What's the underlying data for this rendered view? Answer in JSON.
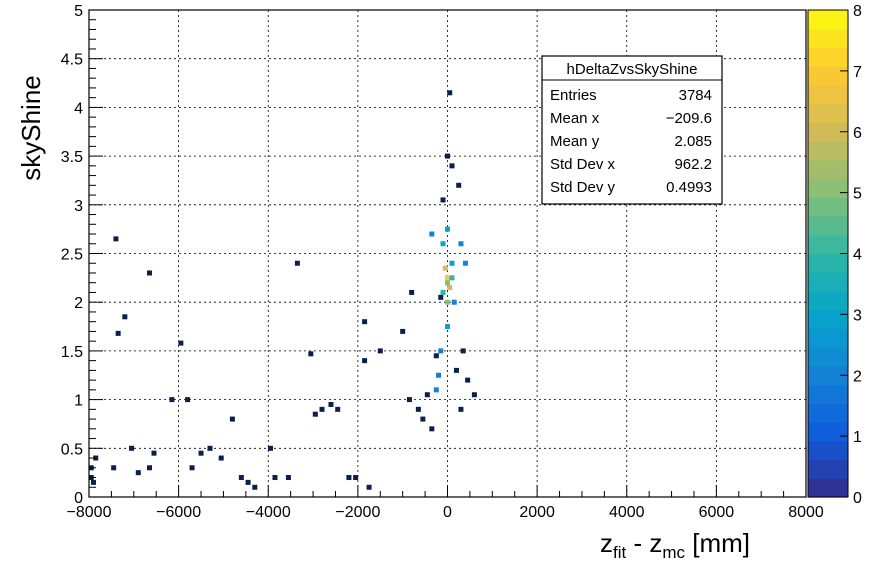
{
  "chart_data": {
    "type": "heatmap",
    "title": "",
    "xlabel": {
      "main": "z",
      "sub1": "fit",
      "mid": " - z",
      "sub2": "mc",
      "unit": " [mm]"
    },
    "ylabel": "skyShine",
    "xlim": [
      -8000,
      8000
    ],
    "ylim": [
      0,
      5
    ],
    "grid": true,
    "x_ticks": [
      "−8000",
      "−6000",
      "−4000",
      "−2000",
      "0",
      "2000",
      "4000",
      "6000",
      "8000"
    ],
    "y_ticks": [
      "0",
      "0.5",
      "1",
      "1.5",
      "2",
      "2.5",
      "3",
      "3.5",
      "4",
      "4.5",
      "5"
    ],
    "colorbar": {
      "min": 0,
      "max": 8,
      "ticks": [
        "0",
        "1",
        "2",
        "3",
        "4",
        "5",
        "6",
        "7",
        "8"
      ]
    },
    "stats_box": {
      "title": "hDeltaZvsSkyShine",
      "rows": [
        {
          "label": "Entries",
          "value": "3784"
        },
        {
          "label": "Mean x",
          "value": "−209.6"
        },
        {
          "label": "Mean y",
          "value": "2.085"
        },
        {
          "label": "Std Dev x",
          "value": "962.2"
        },
        {
          "label": "Std Dev y",
          "value": "0.4993"
        }
      ]
    },
    "points": [
      [
        -7950,
        0.3,
        1
      ],
      [
        -7950,
        0.2,
        1
      ],
      [
        -7900,
        0.15,
        1
      ],
      [
        -7850,
        0.4,
        1
      ],
      [
        -7450,
        0.3,
        1
      ],
      [
        -7400,
        2.65,
        1
      ],
      [
        -7350,
        1.68,
        1
      ],
      [
        -7200,
        1.85,
        1
      ],
      [
        -7050,
        0.5,
        1
      ],
      [
        -6900,
        0.25,
        1
      ],
      [
        -6650,
        0.3,
        1
      ],
      [
        -6550,
        0.45,
        1
      ],
      [
        -6650,
        2.3,
        1
      ],
      [
        -6150,
        1.0,
        1
      ],
      [
        -5950,
        1.58,
        1
      ],
      [
        -5800,
        1.0,
        1
      ],
      [
        -5700,
        0.3,
        1
      ],
      [
        -5500,
        0.45,
        1
      ],
      [
        -5300,
        0.5,
        1
      ],
      [
        -5050,
        0.4,
        1
      ],
      [
        -4800,
        0.8,
        1
      ],
      [
        -4600,
        0.2,
        1
      ],
      [
        -4450,
        0.15,
        1
      ],
      [
        -4300,
        0.1,
        1
      ],
      [
        -3950,
        0.5,
        1
      ],
      [
        -3850,
        0.2,
        1
      ],
      [
        -3550,
        0.2,
        1
      ],
      [
        -3350,
        2.4,
        1
      ],
      [
        -3050,
        1.47,
        1
      ],
      [
        -2950,
        0.85,
        1
      ],
      [
        -2800,
        0.9,
        1
      ],
      [
        -2600,
        0.95,
        1
      ],
      [
        -2450,
        0.9,
        1
      ],
      [
        -2200,
        0.2,
        1
      ],
      [
        -2050,
        0.2,
        1
      ],
      [
        -1750,
        0.1,
        1
      ],
      [
        -1850,
        1.4,
        1
      ],
      [
        -1850,
        1.8,
        1
      ],
      [
        -1500,
        1.5,
        1
      ],
      [
        -1000,
        1.7,
        1
      ],
      [
        -800,
        2.1,
        1
      ],
      [
        -850,
        1.0,
        1
      ],
      [
        -650,
        0.9,
        1
      ],
      [
        -550,
        0.8,
        1
      ],
      [
        -450,
        1.05,
        1
      ],
      [
        -350,
        0.7,
        1
      ],
      [
        -250,
        1.45,
        1
      ],
      [
        -150,
        2.05,
        1
      ],
      [
        -100,
        3.05,
        1
      ],
      [
        0,
        3.5,
        1
      ],
      [
        50,
        4.15,
        1
      ],
      [
        100,
        3.4,
        1
      ],
      [
        150,
        2.0,
        2
      ],
      [
        250,
        3.2,
        1
      ],
      [
        350,
        1.5,
        1
      ],
      [
        450,
        1.2,
        1
      ],
      [
        -350,
        2.7,
        2
      ],
      [
        300,
        2.6,
        2
      ],
      [
        400,
        2.4,
        2
      ],
      [
        600,
        1.05,
        1
      ],
      [
        100,
        2.4,
        3
      ],
      [
        -100,
        2.6,
        3
      ],
      [
        0,
        2.2,
        5
      ],
      [
        0,
        2.0,
        5
      ],
      [
        -50,
        2.35,
        6
      ],
      [
        50,
        2.15,
        6
      ],
      [
        0,
        2.25,
        7
      ],
      [
        -100,
        2.1,
        4
      ],
      [
        100,
        2.25,
        4
      ],
      [
        0,
        2.75,
        3
      ],
      [
        0,
        1.75,
        3
      ],
      [
        -150,
        1.5,
        2
      ],
      [
        200,
        1.3,
        1
      ],
      [
        -250,
        1.1,
        2
      ],
      [
        -200,
        1.25,
        2
      ],
      [
        300,
        0.9,
        1
      ]
    ]
  }
}
